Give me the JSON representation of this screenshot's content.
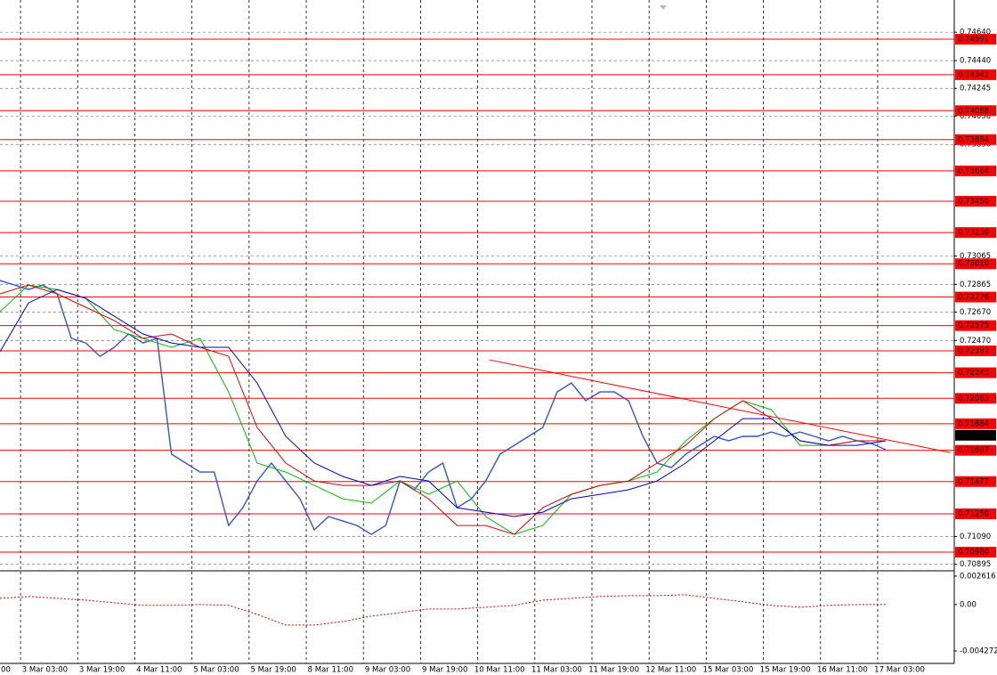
{
  "chart_data": [
    {
      "type": "line",
      "xlim": [
        0,
        267.2
      ],
      "ylim": [
        0.70855,
        0.74867
      ],
      "xticks": [
        {
          "value": -10.25,
          "label": "00"
        },
        {
          "value": 5.75,
          "label": "3 Mar 03:00"
        },
        {
          "value": 21.75,
          "label": "3 Mar 19:00"
        },
        {
          "value": 37.75,
          "label": "4 Mar 11:00"
        },
        {
          "value": 53.75,
          "label": "5 Mar 03:00"
        },
        {
          "value": 69.75,
          "label": "5 Mar 19:00"
        },
        {
          "value": 85.75,
          "label": "8 Mar 11:00"
        },
        {
          "value": 101.75,
          "label": "9 Mar 03:00"
        },
        {
          "value": 117.75,
          "label": "9 Mar 19:00"
        },
        {
          "value": 133.75,
          "label": "10 Mar 11:00"
        },
        {
          "value": 149.75,
          "label": "11 Mar 03:00"
        },
        {
          "value": 165.75,
          "label": "11 Mar 19:00"
        },
        {
          "value": 181.75,
          "label": "12 Mar 11:00"
        },
        {
          "value": 197.75,
          "label": "15 Mar 03:00"
        },
        {
          "value": 213.75,
          "label": "15 Mar 19:00"
        },
        {
          "value": 229.75,
          "label": "16 Mar 11:00"
        },
        {
          "value": 245.75,
          "label": "17 Mar 03:00"
        }
      ],
      "yticks": [
        {
          "value": 0.7464,
          "label": "0.74640"
        },
        {
          "value": 0.7444,
          "label": "0.74440"
        },
        {
          "value": 0.74245,
          "label": "0.74245"
        },
        {
          "value": 0.7405,
          "label": "0.74050"
        },
        {
          "value": 0.7385,
          "label": "0.73850"
        },
        {
          "value": 0.73065,
          "label": "0.73065"
        },
        {
          "value": 0.72865,
          "label": "0.72865"
        },
        {
          "value": 0.7267,
          "label": "0.72670"
        },
        {
          "value": 0.7247,
          "label": "0.72470"
        },
        {
          "value": 0.7109,
          "label": "0.71090"
        },
        {
          "value": 0.70895,
          "label": "0.70895"
        }
      ],
      "grid": true,
      "levels_color": "#ff0000",
      "levels": [
        {
          "value": 0.74591,
          "label": "0.74591"
        },
        {
          "value": 0.74341,
          "label": "0.74341"
        },
        {
          "value": 0.74088,
          "label": "0.74088"
        },
        {
          "value": 0.73884,
          "label": "0.73884"
        },
        {
          "value": 0.73664,
          "label": "0.73664"
        },
        {
          "value": 0.7345,
          "label": "0.73450"
        },
        {
          "value": 0.7323,
          "label": "0.73230"
        },
        {
          "value": 0.7301,
          "label": "0.73010"
        },
        {
          "value": 0.72776,
          "label": "0.72776"
        },
        {
          "value": 0.72575,
          "label": "0.72575"
        },
        {
          "value": 0.72397,
          "label": "0.72397"
        },
        {
          "value": 0.72243,
          "label": "0.72243"
        },
        {
          "value": 0.72063,
          "label": "0.72063"
        },
        {
          "value": 0.71884,
          "label": "0.71884"
        },
        {
          "value": 0.71697,
          "label": "0.71697"
        },
        {
          "value": 0.71477,
          "label": "0.71477"
        },
        {
          "value": 0.7125,
          "label": "0.71250"
        },
        {
          "value": 0.7098,
          "label": "0.70980"
        }
      ],
      "last_price": {
        "value": 0.71803,
        "label": "0.71803"
      },
      "trendline": {
        "color": "#ff0000",
        "x": [
          137,
          266
        ],
        "values": [
          0.72334,
          0.71682
        ]
      },
      "series": [
        {
          "color": "#3355cc",
          "x": [
            0,
            4,
            8,
            12,
            16,
            20,
            24,
            28,
            32,
            36,
            40,
            44,
            48,
            52,
            56,
            60,
            64,
            68,
            72,
            76,
            80,
            84,
            88,
            92,
            96,
            100,
            104,
            108,
            112,
            116,
            120,
            124,
            128,
            132,
            136,
            140,
            144,
            148,
            152,
            156,
            160,
            164,
            168,
            172,
            176,
            180,
            184,
            188,
            192,
            196,
            200,
            204,
            208,
            212,
            216,
            220,
            224,
            228,
            232,
            236,
            240,
            244,
            248
          ],
          "values": [
            0.72892,
            0.72861,
            0.72829,
            0.72861,
            0.72798,
            0.72485,
            0.72453,
            0.72359,
            0.72422,
            0.72516,
            0.72453,
            0.72485,
            0.7167,
            0.71607,
            0.71544,
            0.71544,
            0.71168,
            0.71293,
            0.71481,
            0.71607,
            0.71481,
            0.71356,
            0.71137,
            0.71231,
            0.71199,
            0.71168,
            0.71105,
            0.71168,
            0.71481,
            0.71419,
            0.71544,
            0.71607,
            0.71293,
            0.71356,
            0.71481,
            0.7167,
            0.71732,
            0.71795,
            0.71858,
            0.72108,
            0.72171,
            0.72046,
            0.72108,
            0.72108,
            0.72046,
            0.71795,
            0.71607,
            0.71575,
            0.7167,
            0.71732,
            0.71795,
            0.71764,
            0.71795,
            0.71795,
            0.71826,
            0.71795,
            0.71826,
            0.71795,
            0.71764,
            0.71795,
            0.71764,
            0.71745,
            0.71701
          ]
        },
        {
          "color": "#00bb00",
          "x": [
            0,
            8,
            16,
            24,
            32,
            40,
            48,
            56,
            64,
            72,
            80,
            88,
            96,
            104,
            112,
            120,
            128,
            136,
            144,
            152,
            160,
            168,
            176,
            184,
            192,
            200,
            208,
            216,
            224,
            232,
            240,
            248
          ],
          "values": [
            0.72673,
            0.72861,
            0.72829,
            0.72767,
            0.72547,
            0.72485,
            0.72422,
            0.72485,
            0.72108,
            0.71607,
            0.71544,
            0.7145,
            0.71356,
            0.71325,
            0.71481,
            0.71387,
            0.71481,
            0.71231,
            0.71105,
            0.71168,
            0.71387,
            0.7145,
            0.71481,
            0.71544,
            0.71764,
            0.7192,
            0.72046,
            0.71983,
            0.71732,
            0.71732,
            0.71764,
            0.71764
          ]
        },
        {
          "color": "#dd0000",
          "x": [
            0,
            8,
            16,
            24,
            32,
            40,
            48,
            56,
            64,
            72,
            80,
            88,
            96,
            104,
            112,
            120,
            128,
            136,
            144,
            152,
            160,
            168,
            176,
            184,
            192,
            200,
            208,
            216,
            224,
            232,
            240,
            248
          ],
          "values": [
            0.72798,
            0.72861,
            0.72798,
            0.72704,
            0.7261,
            0.72485,
            0.72516,
            0.72422,
            0.72359,
            0.71858,
            0.71607,
            0.71481,
            0.7145,
            0.7145,
            0.71481,
            0.71356,
            0.71168,
            0.71168,
            0.71105,
            0.71293,
            0.71387,
            0.7145,
            0.71481,
            0.71607,
            0.71732,
            0.7192,
            0.72046,
            0.7192,
            0.71764,
            0.71732,
            0.71764,
            0.71764
          ]
        },
        {
          "color": "#0000cc",
          "x": [
            0,
            8,
            16,
            24,
            32,
            40,
            48,
            56,
            64,
            72,
            80,
            88,
            96,
            104,
            112,
            120,
            128,
            136,
            144,
            152,
            160,
            168,
            176,
            184,
            192,
            200,
            208,
            216,
            224,
            232,
            240,
            248
          ],
          "values": [
            0.72391,
            0.72735,
            0.72829,
            0.72767,
            0.72641,
            0.72516,
            0.72453,
            0.72422,
            0.72422,
            0.72171,
            0.71795,
            0.71607,
            0.71513,
            0.7145,
            0.71513,
            0.71481,
            0.71293,
            0.71262,
            0.71231,
            0.71262,
            0.71356,
            0.71387,
            0.71419,
            0.71481,
            0.71607,
            0.71764,
            0.7192,
            0.7192,
            0.71764,
            0.71732,
            0.71732,
            0.71764
          ]
        }
      ]
    },
    {
      "type": "line",
      "xlim": [
        0,
        267.2
      ],
      "ylim": [
        -0.00542,
        0.00294
      ],
      "yticks": [
        {
          "value": 0.002616,
          "label": "0.002616"
        },
        {
          "value": 0,
          "label": "0.00"
        },
        {
          "value": -0.004272,
          "label": "-0.004272"
        }
      ],
      "series": [
        {
          "color": "#cc0000",
          "x": [
            0,
            8,
            16,
            24,
            32,
            40,
            48,
            56,
            64,
            72,
            80,
            88,
            96,
            104,
            112,
            120,
            128,
            136,
            144,
            152,
            160,
            168,
            176,
            184,
            192,
            200,
            208,
            216,
            224,
            232,
            240,
            248
          ],
          "values": [
            0.00057,
            0.00074,
            0.00057,
            0.00041,
            0.00016,
            -8e-05,
            -8e-05,
            0,
            -8e-05,
            -0.0009,
            -0.00189,
            -0.00189,
            -0.00156,
            -0.00107,
            -0.00074,
            -0.00041,
            -0.00041,
            -0.00025,
            -8e-05,
            0.00041,
            0.00057,
            0.00074,
            0.00082,
            0.00082,
            0.0009,
            0.00057,
            0.00025,
            -8e-05,
            -0.00025,
            -8e-05,
            0,
            0
          ]
        }
      ]
    }
  ]
}
